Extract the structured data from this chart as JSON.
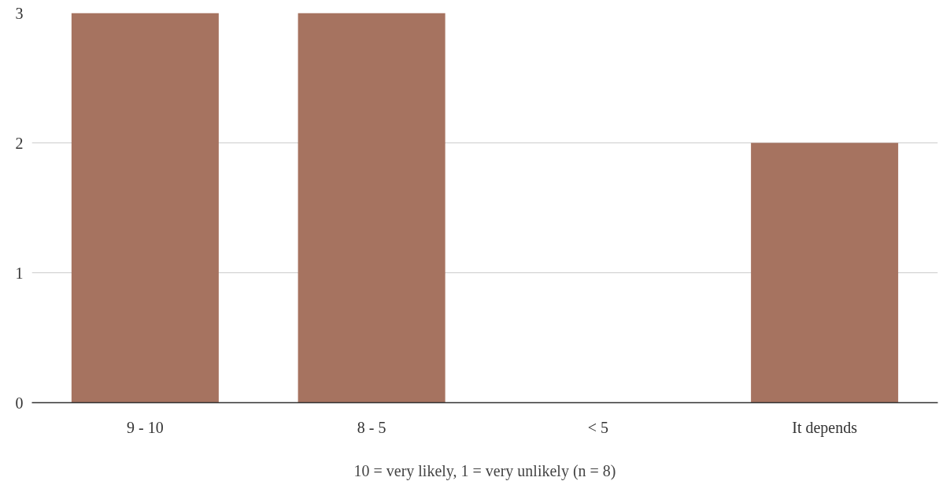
{
  "chart_data": {
    "type": "bar",
    "categories": [
      "9 - 10",
      "8 - 5",
      "< 5",
      "It depends"
    ],
    "values": [
      3,
      3,
      0,
      2
    ],
    "color": "#a67360",
    "ylim": [
      0,
      3
    ],
    "yticks": [
      0,
      1,
      2,
      3
    ],
    "grid": "y",
    "xlabel": "10 = very likely, 1 = very unlikely (n = 8)"
  }
}
